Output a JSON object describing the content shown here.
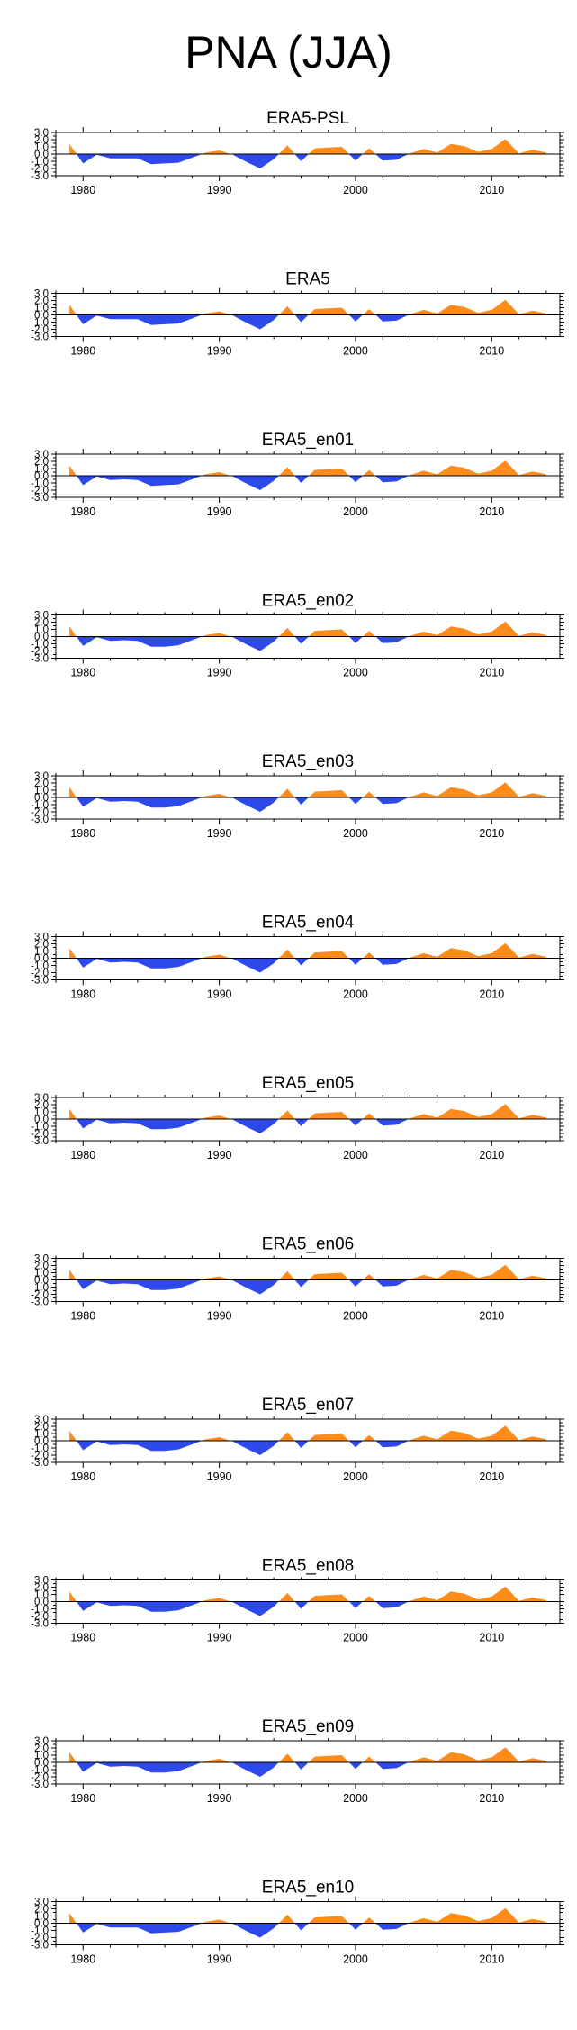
{
  "figure": {
    "title": "PNA (JJA)"
  },
  "chart_style": {
    "positive_color": "#ff8c1a",
    "negative_color": "#2e49ea",
    "axis_color": "#000000"
  },
  "chart_data": [
    {
      "type": "area",
      "title": "ERA5-PSL",
      "x": [
        1979,
        1980,
        1981,
        1982,
        1983,
        1984,
        1985,
        1986,
        1987,
        1988,
        1989,
        1990,
        1991,
        1992,
        1993,
        1994,
        1995,
        1996,
        1997,
        1998,
        1999,
        2000,
        2001,
        2002,
        2003,
        2004,
        2005,
        2006,
        2007,
        2008,
        2009,
        2010,
        2011,
        2012,
        2013,
        2014
      ],
      "values": [
        1.4,
        -1.3,
        -0.1,
        -0.6,
        -0.6,
        -0.6,
        -1.4,
        -1.3,
        -1.2,
        -0.5,
        0.2,
        0.5,
        -0.1,
        -1.1,
        -2.0,
        -0.7,
        1.2,
        -1.0,
        0.8,
        0.9,
        1.0,
        -0.9,
        0.8,
        -0.9,
        -0.8,
        0.1,
        0.7,
        0.2,
        1.4,
        1.1,
        0.3,
        0.7,
        2.1,
        0.1,
        0.6,
        0.2
      ],
      "yticks": [
        "3.0",
        "2.0",
        "1.0",
        "0.0",
        "-1.0",
        "-2.0",
        "-3.0"
      ],
      "ylim": [
        -3.0,
        3.0
      ],
      "xticks": [
        "1980",
        "1990",
        "2000",
        "2010"
      ],
      "xlim": [
        1978,
        2015
      ]
    },
    {
      "type": "area",
      "title": "ERA5",
      "x": [
        1979,
        1980,
        1981,
        1982,
        1983,
        1984,
        1985,
        1986,
        1987,
        1988,
        1989,
        1990,
        1991,
        1992,
        1993,
        1994,
        1995,
        1996,
        1997,
        1998,
        1999,
        2000,
        2001,
        2002,
        2003,
        2004,
        2005,
        2006,
        2007,
        2008,
        2009,
        2010,
        2011,
        2012,
        2013,
        2014
      ],
      "values": [
        1.4,
        -1.3,
        -0.1,
        -0.6,
        -0.6,
        -0.6,
        -1.4,
        -1.3,
        -1.2,
        -0.5,
        0.2,
        0.5,
        -0.1,
        -1.1,
        -2.0,
        -0.7,
        1.2,
        -1.0,
        0.8,
        0.9,
        1.0,
        -0.9,
        0.8,
        -0.9,
        -0.8,
        0.1,
        0.7,
        0.2,
        1.4,
        1.1,
        0.3,
        0.7,
        2.1,
        0.1,
        0.6,
        0.2
      ],
      "yticks": [
        "3.0",
        "2.0",
        "1.0",
        "0.0",
        "-1.0",
        "-2.0",
        "-3.0"
      ],
      "ylim": [
        -3.0,
        3.0
      ],
      "xticks": [
        "1980",
        "1990",
        "2000",
        "2010"
      ],
      "xlim": [
        1978,
        2015
      ]
    },
    {
      "type": "area",
      "title": "ERA5_en01",
      "x": [
        1979,
        1980,
        1981,
        1982,
        1983,
        1984,
        1985,
        1986,
        1987,
        1988,
        1989,
        1990,
        1991,
        1992,
        1993,
        1994,
        1995,
        1996,
        1997,
        1998,
        1999,
        2000,
        2001,
        2002,
        2003,
        2004,
        2005,
        2006,
        2007,
        2008,
        2009,
        2010,
        2011,
        2012,
        2013,
        2014
      ],
      "values": [
        1.4,
        -1.3,
        -0.1,
        -0.6,
        -0.5,
        -0.6,
        -1.4,
        -1.3,
        -1.2,
        -0.5,
        0.2,
        0.5,
        -0.1,
        -1.1,
        -2.0,
        -0.7,
        1.2,
        -1.0,
        0.8,
        0.9,
        1.0,
        -0.9,
        0.8,
        -0.9,
        -0.8,
        0.1,
        0.7,
        0.2,
        1.4,
        1.1,
        0.3,
        0.7,
        2.1,
        0.1,
        0.6,
        0.2
      ],
      "yticks": [
        "3.0",
        "2.0",
        "1.0",
        "0.0",
        "-1.0",
        "-2.0",
        "-3.0"
      ],
      "ylim": [
        -3.0,
        3.0
      ],
      "xticks": [
        "1980",
        "1990",
        "2000",
        "2010"
      ],
      "xlim": [
        1978,
        2015
      ]
    },
    {
      "type": "area",
      "title": "ERA5_en02",
      "x": [
        1979,
        1980,
        1981,
        1982,
        1983,
        1984,
        1985,
        1986,
        1987,
        1988,
        1989,
        1990,
        1991,
        1992,
        1993,
        1994,
        1995,
        1996,
        1997,
        1998,
        1999,
        2000,
        2001,
        2002,
        2003,
        2004,
        2005,
        2006,
        2007,
        2008,
        2009,
        2010,
        2011,
        2012,
        2013,
        2014
      ],
      "values": [
        1.4,
        -1.3,
        -0.1,
        -0.6,
        -0.5,
        -0.6,
        -1.4,
        -1.4,
        -1.2,
        -0.5,
        0.2,
        0.5,
        -0.1,
        -1.1,
        -2.0,
        -0.7,
        1.2,
        -1.0,
        0.8,
        0.9,
        1.0,
        -0.9,
        0.8,
        -0.9,
        -0.8,
        0.1,
        0.7,
        0.2,
        1.4,
        1.1,
        0.3,
        0.7,
        2.1,
        0.1,
        0.6,
        0.2
      ],
      "yticks": [
        "3.0",
        "2.0",
        "1.0",
        "0.0",
        "-1.0",
        "-2.0",
        "-3.0"
      ],
      "ylim": [
        -3.0,
        3.0
      ],
      "xticks": [
        "1980",
        "1990",
        "2000",
        "2010"
      ],
      "xlim": [
        1978,
        2015
      ]
    },
    {
      "type": "area",
      "title": "ERA5_en03",
      "x": [
        1979,
        1980,
        1981,
        1982,
        1983,
        1984,
        1985,
        1986,
        1987,
        1988,
        1989,
        1990,
        1991,
        1992,
        1993,
        1994,
        1995,
        1996,
        1997,
        1998,
        1999,
        2000,
        2001,
        2002,
        2003,
        2004,
        2005,
        2006,
        2007,
        2008,
        2009,
        2010,
        2011,
        2012,
        2013,
        2014
      ],
      "values": [
        1.4,
        -1.3,
        -0.1,
        -0.6,
        -0.5,
        -0.6,
        -1.4,
        -1.4,
        -1.2,
        -0.5,
        0.2,
        0.5,
        -0.1,
        -1.1,
        -2.0,
        -0.7,
        1.2,
        -1.0,
        0.8,
        0.9,
        1.0,
        -0.9,
        0.8,
        -0.9,
        -0.8,
        0.1,
        0.7,
        0.2,
        1.4,
        1.1,
        0.3,
        0.7,
        2.1,
        0.1,
        0.6,
        0.2
      ],
      "yticks": [
        "3.0",
        "2.0",
        "1.0",
        "0.0",
        "-1.0",
        "-2.0",
        "-3.0"
      ],
      "ylim": [
        -3.0,
        3.0
      ],
      "xticks": [
        "1980",
        "1990",
        "2000",
        "2010"
      ],
      "xlim": [
        1978,
        2015
      ]
    },
    {
      "type": "area",
      "title": "ERA5_en04",
      "x": [
        1979,
        1980,
        1981,
        1982,
        1983,
        1984,
        1985,
        1986,
        1987,
        1988,
        1989,
        1990,
        1991,
        1992,
        1993,
        1994,
        1995,
        1996,
        1997,
        1998,
        1999,
        2000,
        2001,
        2002,
        2003,
        2004,
        2005,
        2006,
        2007,
        2008,
        2009,
        2010,
        2011,
        2012,
        2013,
        2014
      ],
      "values": [
        1.4,
        -1.3,
        -0.1,
        -0.6,
        -0.5,
        -0.6,
        -1.4,
        -1.4,
        -1.2,
        -0.5,
        0.2,
        0.5,
        -0.1,
        -1.1,
        -2.0,
        -0.7,
        1.2,
        -1.0,
        0.8,
        0.9,
        1.0,
        -0.9,
        0.8,
        -0.9,
        -0.8,
        0.1,
        0.7,
        0.2,
        1.4,
        1.1,
        0.3,
        0.7,
        2.1,
        0.1,
        0.6,
        0.2
      ],
      "yticks": [
        "3.0",
        "2.0",
        "1.0",
        "0.0",
        "-1.0",
        "-2.0",
        "-3.0"
      ],
      "ylim": [
        -3.0,
        3.0
      ],
      "xticks": [
        "1980",
        "1990",
        "2000",
        "2010"
      ],
      "xlim": [
        1978,
        2015
      ]
    },
    {
      "type": "area",
      "title": "ERA5_en05",
      "x": [
        1979,
        1980,
        1981,
        1982,
        1983,
        1984,
        1985,
        1986,
        1987,
        1988,
        1989,
        1990,
        1991,
        1992,
        1993,
        1994,
        1995,
        1996,
        1997,
        1998,
        1999,
        2000,
        2001,
        2002,
        2003,
        2004,
        2005,
        2006,
        2007,
        2008,
        2009,
        2010,
        2011,
        2012,
        2013,
        2014
      ],
      "values": [
        1.4,
        -1.3,
        -0.1,
        -0.6,
        -0.5,
        -0.6,
        -1.4,
        -1.4,
        -1.2,
        -0.5,
        0.2,
        0.5,
        -0.1,
        -1.1,
        -2.0,
        -0.7,
        1.2,
        -1.0,
        0.8,
        0.9,
        1.0,
        -0.9,
        0.8,
        -0.9,
        -0.8,
        0.1,
        0.7,
        0.2,
        1.4,
        1.1,
        0.3,
        0.7,
        2.1,
        0.1,
        0.6,
        0.2
      ],
      "yticks": [
        "3.0",
        "2.0",
        "1.0",
        "0.0",
        "-1.0",
        "-2.0",
        "-3.0"
      ],
      "ylim": [
        -3.0,
        3.0
      ],
      "xticks": [
        "1980",
        "1990",
        "2000",
        "2010"
      ],
      "xlim": [
        1978,
        2015
      ]
    },
    {
      "type": "area",
      "title": "ERA5_en06",
      "x": [
        1979,
        1980,
        1981,
        1982,
        1983,
        1984,
        1985,
        1986,
        1987,
        1988,
        1989,
        1990,
        1991,
        1992,
        1993,
        1994,
        1995,
        1996,
        1997,
        1998,
        1999,
        2000,
        2001,
        2002,
        2003,
        2004,
        2005,
        2006,
        2007,
        2008,
        2009,
        2010,
        2011,
        2012,
        2013,
        2014
      ],
      "values": [
        1.4,
        -1.3,
        -0.1,
        -0.6,
        -0.5,
        -0.6,
        -1.4,
        -1.4,
        -1.2,
        -0.5,
        0.2,
        0.5,
        -0.1,
        -1.1,
        -2.0,
        -0.7,
        1.2,
        -1.0,
        0.8,
        0.9,
        1.0,
        -0.9,
        0.8,
        -0.9,
        -0.8,
        0.1,
        0.7,
        0.2,
        1.4,
        1.1,
        0.3,
        0.7,
        2.1,
        0.1,
        0.6,
        0.2
      ],
      "yticks": [
        "3.0",
        "2.0",
        "1.0",
        "0.0",
        "-1.0",
        "-2.0",
        "-3.0"
      ],
      "ylim": [
        -3.0,
        3.0
      ],
      "xticks": [
        "1980",
        "1990",
        "2000",
        "2010"
      ],
      "xlim": [
        1978,
        2015
      ]
    },
    {
      "type": "area",
      "title": "ERA5_en07",
      "x": [
        1979,
        1980,
        1981,
        1982,
        1983,
        1984,
        1985,
        1986,
        1987,
        1988,
        1989,
        1990,
        1991,
        1992,
        1993,
        1994,
        1995,
        1996,
        1997,
        1998,
        1999,
        2000,
        2001,
        2002,
        2003,
        2004,
        2005,
        2006,
        2007,
        2008,
        2009,
        2010,
        2011,
        2012,
        2013,
        2014
      ],
      "values": [
        1.4,
        -1.3,
        -0.1,
        -0.6,
        -0.5,
        -0.6,
        -1.4,
        -1.4,
        -1.2,
        -0.5,
        0.2,
        0.5,
        -0.1,
        -1.1,
        -2.0,
        -0.7,
        1.2,
        -1.0,
        0.8,
        0.9,
        1.0,
        -0.9,
        0.8,
        -0.9,
        -0.8,
        0.1,
        0.7,
        0.2,
        1.4,
        1.1,
        0.3,
        0.7,
        2.1,
        0.1,
        0.6,
        0.2
      ],
      "yticks": [
        "3.0",
        "2.0",
        "1.0",
        "0.0",
        "-1.0",
        "-2.0",
        "-3.0"
      ],
      "ylim": [
        -3.0,
        3.0
      ],
      "xticks": [
        "1980",
        "1990",
        "2000",
        "2010"
      ],
      "xlim": [
        1978,
        2015
      ]
    },
    {
      "type": "area",
      "title": "ERA5_en08",
      "x": [
        1979,
        1980,
        1981,
        1982,
        1983,
        1984,
        1985,
        1986,
        1987,
        1988,
        1989,
        1990,
        1991,
        1992,
        1993,
        1994,
        1995,
        1996,
        1997,
        1998,
        1999,
        2000,
        2001,
        2002,
        2003,
        2004,
        2005,
        2006,
        2007,
        2008,
        2009,
        2010,
        2011,
        2012,
        2013,
        2014
      ],
      "values": [
        1.4,
        -1.3,
        -0.1,
        -0.6,
        -0.5,
        -0.6,
        -1.4,
        -1.4,
        -1.2,
        -0.5,
        0.2,
        0.5,
        -0.1,
        -1.1,
        -2.0,
        -0.7,
        1.2,
        -1.0,
        0.8,
        0.9,
        1.0,
        -0.9,
        0.8,
        -0.9,
        -0.8,
        0.1,
        0.7,
        0.2,
        1.4,
        1.1,
        0.3,
        0.7,
        2.1,
        0.1,
        0.6,
        0.2
      ],
      "yticks": [
        "3.0",
        "2.0",
        "1.0",
        "0.0",
        "-1.0",
        "-2.0",
        "-3.0"
      ],
      "ylim": [
        -3.0,
        3.0
      ],
      "xticks": [
        "1980",
        "1990",
        "2000",
        "2010"
      ],
      "xlim": [
        1978,
        2015
      ]
    },
    {
      "type": "area",
      "title": "ERA5_en09",
      "x": [
        1979,
        1980,
        1981,
        1982,
        1983,
        1984,
        1985,
        1986,
        1987,
        1988,
        1989,
        1990,
        1991,
        1992,
        1993,
        1994,
        1995,
        1996,
        1997,
        1998,
        1999,
        2000,
        2001,
        2002,
        2003,
        2004,
        2005,
        2006,
        2007,
        2008,
        2009,
        2010,
        2011,
        2012,
        2013,
        2014
      ],
      "values": [
        1.4,
        -1.3,
        -0.1,
        -0.6,
        -0.5,
        -0.6,
        -1.4,
        -1.4,
        -1.2,
        -0.5,
        0.2,
        0.5,
        -0.1,
        -1.1,
        -2.0,
        -0.7,
        1.2,
        -1.0,
        0.8,
        0.9,
        1.0,
        -0.9,
        0.8,
        -0.9,
        -0.8,
        0.1,
        0.7,
        0.2,
        1.4,
        1.1,
        0.3,
        0.7,
        2.1,
        0.1,
        0.6,
        0.2
      ],
      "yticks": [
        "3.0",
        "2.0",
        "1.0",
        "0.0",
        "-1.0",
        "-2.0",
        "-3.0"
      ],
      "ylim": [
        -3.0,
        3.0
      ],
      "xticks": [
        "1980",
        "1990",
        "2000",
        "2010"
      ],
      "xlim": [
        1978,
        2015
      ]
    },
    {
      "type": "area",
      "title": "ERA5_en10",
      "x": [
        1979,
        1980,
        1981,
        1982,
        1983,
        1984,
        1985,
        1986,
        1987,
        1988,
        1989,
        1990,
        1991,
        1992,
        1993,
        1994,
        1995,
        1996,
        1997,
        1998,
        1999,
        2000,
        2001,
        2002,
        2003,
        2004,
        2005,
        2006,
        2007,
        2008,
        2009,
        2010,
        2011,
        2012,
        2013,
        2014
      ],
      "values": [
        1.4,
        -1.3,
        -0.1,
        -0.6,
        -0.6,
        -0.6,
        -1.4,
        -1.3,
        -1.2,
        -0.5,
        0.2,
        0.5,
        -0.1,
        -1.1,
        -2.0,
        -0.7,
        1.2,
        -1.0,
        0.8,
        0.9,
        1.0,
        -0.9,
        0.8,
        -0.9,
        -0.8,
        0.1,
        0.7,
        0.2,
        1.4,
        1.1,
        0.3,
        0.7,
        2.1,
        0.1,
        0.6,
        0.2
      ],
      "yticks": [
        "3.0",
        "2.0",
        "1.0",
        "0.0",
        "-1.0",
        "-2.0",
        "-3.0"
      ],
      "ylim": [
        -3.0,
        3.0
      ],
      "xticks": [
        "1980",
        "1990",
        "2000",
        "2010"
      ],
      "xlim": [
        1978,
        2015
      ]
    }
  ]
}
